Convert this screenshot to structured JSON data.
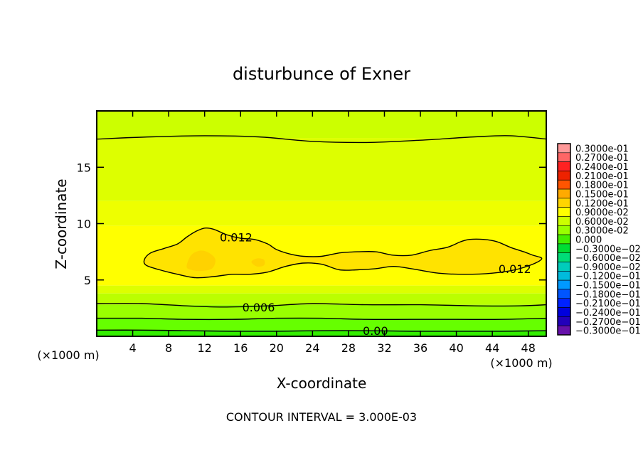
{
  "chart_data": {
    "type": "heatmap",
    "title": "disturbunce of Exner",
    "xlabel": "X-coordinate",
    "ylabel": "Z-coordinate",
    "x_unit": "(×1000 m)",
    "y_unit": "(×1000 m)",
    "xlim": [
      0,
      50
    ],
    "ylim": [
      0,
      20
    ],
    "x_ticks": [
      4,
      8,
      12,
      16,
      20,
      24,
      28,
      32,
      36,
      40,
      44,
      48
    ],
    "y_ticks": [
      5,
      10,
      15
    ],
    "footer": "CONTOUR INTERVAL = 3.000E-03",
    "legend": {
      "placement": "right",
      "levels": [
        {
          "label": "0.3000e-01",
          "color": "#ff9999"
        },
        {
          "label": "0.2700e-01",
          "color": "#ff6666"
        },
        {
          "label": "0.2400e-01",
          "color": "#ff2222"
        },
        {
          "label": "0.2100e-01",
          "color": "#ee2200"
        },
        {
          "label": "0.1800e-01",
          "color": "#ff5500"
        },
        {
          "label": "0.1500e-01",
          "color": "#ffaa00"
        },
        {
          "label": "0.1200e-01",
          "color": "#ffd500"
        },
        {
          "label": "0.9000e-02",
          "color": "#ffff00"
        },
        {
          "label": "0.6000e-02",
          "color": "#ccff00"
        },
        {
          "label": "0.3000e-02",
          "color": "#99ff00"
        },
        {
          "label": "0.000",
          "color": "#44ee00"
        },
        {
          "label": "−0.3000e−02",
          "color": "#00dd33"
        },
        {
          "label": "−0.6000e−02",
          "color": "#00dd77"
        },
        {
          "label": "−0.9000e−02",
          "color": "#00ccbb"
        },
        {
          "label": "−0.1200e−01",
          "color": "#00bbdd"
        },
        {
          "label": "−0.1500e−01",
          "color": "#0099ff"
        },
        {
          "label": "−0.1800e−01",
          "color": "#0055ff"
        },
        {
          "label": "−0.2100e−01",
          "color": "#0022ff"
        },
        {
          "label": "−0.2400e−01",
          "color": "#0000dd"
        },
        {
          "label": "−0.2700e−01",
          "color": "#2200bb"
        },
        {
          "label": "−0.3000e−01",
          "color": "#6611aa"
        }
      ]
    },
    "contour_labels": [
      {
        "text": "0.012",
        "x": 15.5,
        "z": 8.8
      },
      {
        "text": "0.012",
        "x": 46.5,
        "z": 6.0
      },
      {
        "text": "0.006",
        "x": 18.0,
        "z": 2.6
      },
      {
        "text": "0.00",
        "x": 31.0,
        "z": 0.5
      }
    ],
    "contours": [
      {
        "level": 0.012,
        "closed": true,
        "points": [
          [
            5.3,
            6.8
          ],
          [
            6.0,
            7.4
          ],
          [
            7.5,
            7.8
          ],
          [
            9.0,
            8.2
          ],
          [
            10.0,
            8.8
          ],
          [
            11.0,
            9.3
          ],
          [
            12.0,
            9.6
          ],
          [
            13.0,
            9.5
          ],
          [
            14.5,
            9.0
          ],
          [
            16.0,
            8.7
          ],
          [
            17.5,
            8.6
          ],
          [
            19.0,
            8.2
          ],
          [
            20.0,
            7.7
          ],
          [
            21.5,
            7.3
          ],
          [
            23.0,
            7.1
          ],
          [
            25.0,
            7.1
          ],
          [
            27.0,
            7.4
          ],
          [
            29.0,
            7.5
          ],
          [
            31.0,
            7.5
          ],
          [
            33.0,
            7.2
          ],
          [
            35.0,
            7.2
          ],
          [
            37.0,
            7.6
          ],
          [
            39.0,
            7.9
          ],
          [
            40.5,
            8.4
          ],
          [
            41.5,
            8.6
          ],
          [
            43.0,
            8.6
          ],
          [
            44.5,
            8.4
          ],
          [
            46.0,
            7.9
          ],
          [
            47.5,
            7.5
          ],
          [
            48.5,
            7.2
          ],
          [
            49.5,
            6.9
          ],
          [
            48.5,
            6.4
          ],
          [
            46.5,
            5.9
          ],
          [
            44.0,
            5.6
          ],
          [
            41.0,
            5.5
          ],
          [
            38.0,
            5.6
          ],
          [
            35.0,
            6.0
          ],
          [
            33.0,
            6.2
          ],
          [
            31.0,
            6.0
          ],
          [
            29.0,
            5.9
          ],
          [
            27.0,
            5.9
          ],
          [
            25.0,
            6.4
          ],
          [
            23.0,
            6.5
          ],
          [
            21.0,
            6.2
          ],
          [
            19.0,
            5.7
          ],
          [
            17.0,
            5.5
          ],
          [
            15.0,
            5.5
          ],
          [
            13.0,
            5.3
          ],
          [
            11.0,
            5.2
          ],
          [
            9.0,
            5.5
          ],
          [
            7.0,
            5.9
          ],
          [
            5.5,
            6.3
          ]
        ]
      },
      {
        "level": 0.009,
        "closed": false,
        "points": [
          [
            0,
            17.5
          ],
          [
            6,
            17.7
          ],
          [
            12,
            17.8
          ],
          [
            18,
            17.7
          ],
          [
            24,
            17.3
          ],
          [
            30,
            17.2
          ],
          [
            36,
            17.4
          ],
          [
            42,
            17.7
          ],
          [
            46,
            17.8
          ],
          [
            50,
            17.5
          ]
        ]
      },
      {
        "level": 0.006,
        "closed": false,
        "points": [
          [
            0,
            2.9
          ],
          [
            5,
            2.9
          ],
          [
            10,
            2.7
          ],
          [
            14,
            2.6
          ],
          [
            19,
            2.7
          ],
          [
            24,
            2.9
          ],
          [
            30,
            2.8
          ],
          [
            36,
            2.8
          ],
          [
            42,
            2.7
          ],
          [
            47,
            2.7
          ],
          [
            50,
            2.8
          ]
        ]
      },
      {
        "level": 0.003,
        "closed": false,
        "points": [
          [
            0,
            1.6
          ],
          [
            5,
            1.6
          ],
          [
            10,
            1.5
          ],
          [
            15,
            1.5
          ],
          [
            20,
            1.6
          ],
          [
            25,
            1.6
          ],
          [
            30,
            1.5
          ],
          [
            35,
            1.5
          ],
          [
            40,
            1.5
          ],
          [
            45,
            1.5
          ],
          [
            50,
            1.6
          ]
        ]
      },
      {
        "level": 0.0,
        "closed": false,
        "points": [
          [
            0,
            0.55
          ],
          [
            5,
            0.55
          ],
          [
            10,
            0.5
          ],
          [
            15,
            0.45
          ],
          [
            20,
            0.45
          ],
          [
            25,
            0.5
          ],
          [
            30,
            0.5
          ],
          [
            35,
            0.45
          ],
          [
            40,
            0.45
          ],
          [
            45,
            0.45
          ],
          [
            50,
            0.5
          ]
        ]
      }
    ],
    "filled_regions": [
      {
        "color": "#ffe300",
        "closed": true,
        "points": [
          [
            5.3,
            6.8
          ],
          [
            6.0,
            7.4
          ],
          [
            7.5,
            7.8
          ],
          [
            9.0,
            8.2
          ],
          [
            10.0,
            8.8
          ],
          [
            11.0,
            9.3
          ],
          [
            12.0,
            9.6
          ],
          [
            13.0,
            9.5
          ],
          [
            14.5,
            9.0
          ],
          [
            16.0,
            8.7
          ],
          [
            17.5,
            8.6
          ],
          [
            19.0,
            8.2
          ],
          [
            20.0,
            7.7
          ],
          [
            21.5,
            7.3
          ],
          [
            23.0,
            7.1
          ],
          [
            25.0,
            7.1
          ],
          [
            27.0,
            7.4
          ],
          [
            29.0,
            7.5
          ],
          [
            31.0,
            7.5
          ],
          [
            33.0,
            7.2
          ],
          [
            35.0,
            7.2
          ],
          [
            37.0,
            7.6
          ],
          [
            39.0,
            7.9
          ],
          [
            40.5,
            8.4
          ],
          [
            41.5,
            8.6
          ],
          [
            43.0,
            8.6
          ],
          [
            44.5,
            8.4
          ],
          [
            46.0,
            7.9
          ],
          [
            47.5,
            7.5
          ],
          [
            48.5,
            7.2
          ],
          [
            49.5,
            6.9
          ],
          [
            48.5,
            6.4
          ],
          [
            46.5,
            5.9
          ],
          [
            44.0,
            5.6
          ],
          [
            41.0,
            5.5
          ],
          [
            38.0,
            5.6
          ],
          [
            35.0,
            6.0
          ],
          [
            33.0,
            6.2
          ],
          [
            31.0,
            6.0
          ],
          [
            29.0,
            5.9
          ],
          [
            27.0,
            5.9
          ],
          [
            25.0,
            6.4
          ],
          [
            23.0,
            6.5
          ],
          [
            21.0,
            6.2
          ],
          [
            19.0,
            5.7
          ],
          [
            17.0,
            5.5
          ],
          [
            15.0,
            5.5
          ],
          [
            13.0,
            5.3
          ],
          [
            11.0,
            5.2
          ],
          [
            9.0,
            5.5
          ],
          [
            7.0,
            5.9
          ],
          [
            5.5,
            6.3
          ]
        ]
      },
      {
        "color": "#ffd200",
        "closed": true,
        "points": [
          [
            10.0,
            6.2
          ],
          [
            10.5,
            7.2
          ],
          [
            11.5,
            7.6
          ],
          [
            12.5,
            7.4
          ],
          [
            13.2,
            6.8
          ],
          [
            12.8,
            6.0
          ],
          [
            11.5,
            5.8
          ],
          [
            10.5,
            5.9
          ]
        ]
      },
      {
        "color": "#ffd200",
        "closed": true,
        "points": [
          [
            17.2,
            6.6
          ],
          [
            17.8,
            6.9
          ],
          [
            18.6,
            6.8
          ],
          [
            18.6,
            6.3
          ],
          [
            17.8,
            6.2
          ]
        ]
      }
    ],
    "bands": [
      {
        "color": "#ccff00",
        "top": 20,
        "bottom": 17.6
      },
      {
        "color": "#ddff00",
        "top": 17.6,
        "bottom": 12.0
      },
      {
        "color": "#eeff00",
        "top": 12.0,
        "bottom": 9.8
      },
      {
        "color": "#ffff00",
        "top": 9.8,
        "bottom": 4.5
      },
      {
        "color": "#ddff00",
        "top": 4.5,
        "bottom": 3.8
      },
      {
        "color": "#bbff00",
        "top": 3.8,
        "bottom": 2.8
      },
      {
        "color": "#99ff00",
        "top": 2.8,
        "bottom": 1.6
      },
      {
        "color": "#66ff00",
        "top": 1.6,
        "bottom": 0.55
      },
      {
        "color": "#33ee00",
        "top": 0.55,
        "bottom": 0
      }
    ]
  }
}
